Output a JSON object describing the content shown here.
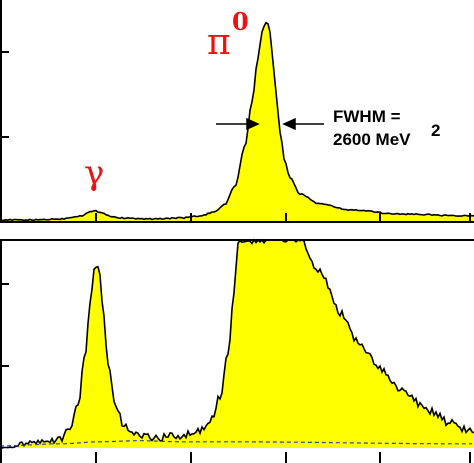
{
  "chart_data": [
    {
      "type": "area",
      "panel": "top",
      "x_ticks_count": 5,
      "y_ticks_count": 2,
      "series": [
        {
          "color": "#ffff00",
          "outline": "#000000",
          "x": [
            0,
            30,
            60,
            80,
            90,
            95,
            100,
            110,
            120,
            150,
            180,
            200,
            215,
            225,
            235,
            245,
            252,
            258,
            262,
            266,
            268,
            270,
            272,
            276,
            280,
            285,
            290,
            300,
            320,
            350,
            400,
            470
          ],
          "y": [
            0.01,
            0.01,
            0.015,
            0.03,
            0.05,
            0.055,
            0.05,
            0.03,
            0.02,
            0.015,
            0.02,
            0.03,
            0.05,
            0.09,
            0.18,
            0.38,
            0.6,
            0.82,
            0.95,
            1.0,
            0.99,
            0.95,
            0.85,
            0.65,
            0.45,
            0.3,
            0.22,
            0.14,
            0.09,
            0.06,
            0.04,
            0.03
          ]
        }
      ],
      "labels": [
        {
          "text": "γ",
          "role": "photon-peak"
        },
        {
          "text": "π",
          "sup": "0",
          "role": "pion-peak"
        }
      ],
      "annotation": {
        "line1": "FWHM =",
        "line2": "2600 MeV",
        "sup": "2"
      }
    },
    {
      "type": "area",
      "panel": "bottom",
      "x_ticks_count": 5,
      "y_ticks_count": 2,
      "ylim": [
        0,
        1
      ],
      "series": [
        {
          "color": "#ffff00",
          "outline": "#000000",
          "x": [
            0,
            30,
            60,
            70,
            78,
            85,
            90,
            94,
            97,
            100,
            103,
            108,
            115,
            125,
            140,
            160,
            180,
            200,
            212,
            220,
            228,
            234,
            238,
            250,
            300,
            320,
            340,
            360,
            380,
            400,
            430,
            450,
            470
          ],
          "y": [
            0.01,
            0.02,
            0.04,
            0.09,
            0.2,
            0.45,
            0.7,
            0.85,
            0.88,
            0.83,
            0.65,
            0.4,
            0.2,
            0.1,
            0.06,
            0.05,
            0.06,
            0.08,
            0.14,
            0.25,
            0.45,
            0.75,
            1.0,
            1.0,
            1.0,
            0.85,
            0.65,
            0.5,
            0.38,
            0.28,
            0.18,
            0.12,
            0.08
          ]
        },
        {
          "name": "",
          "role": "background-fit",
          "color": "#3344aa",
          "x": [
            0,
            60,
            100,
            140,
            180,
            220,
            470
          ],
          "y": [
            0.01,
            0.02,
            0.03,
            0.035,
            0.03,
            0.03,
            0.02
          ]
        }
      ]
    }
  ]
}
